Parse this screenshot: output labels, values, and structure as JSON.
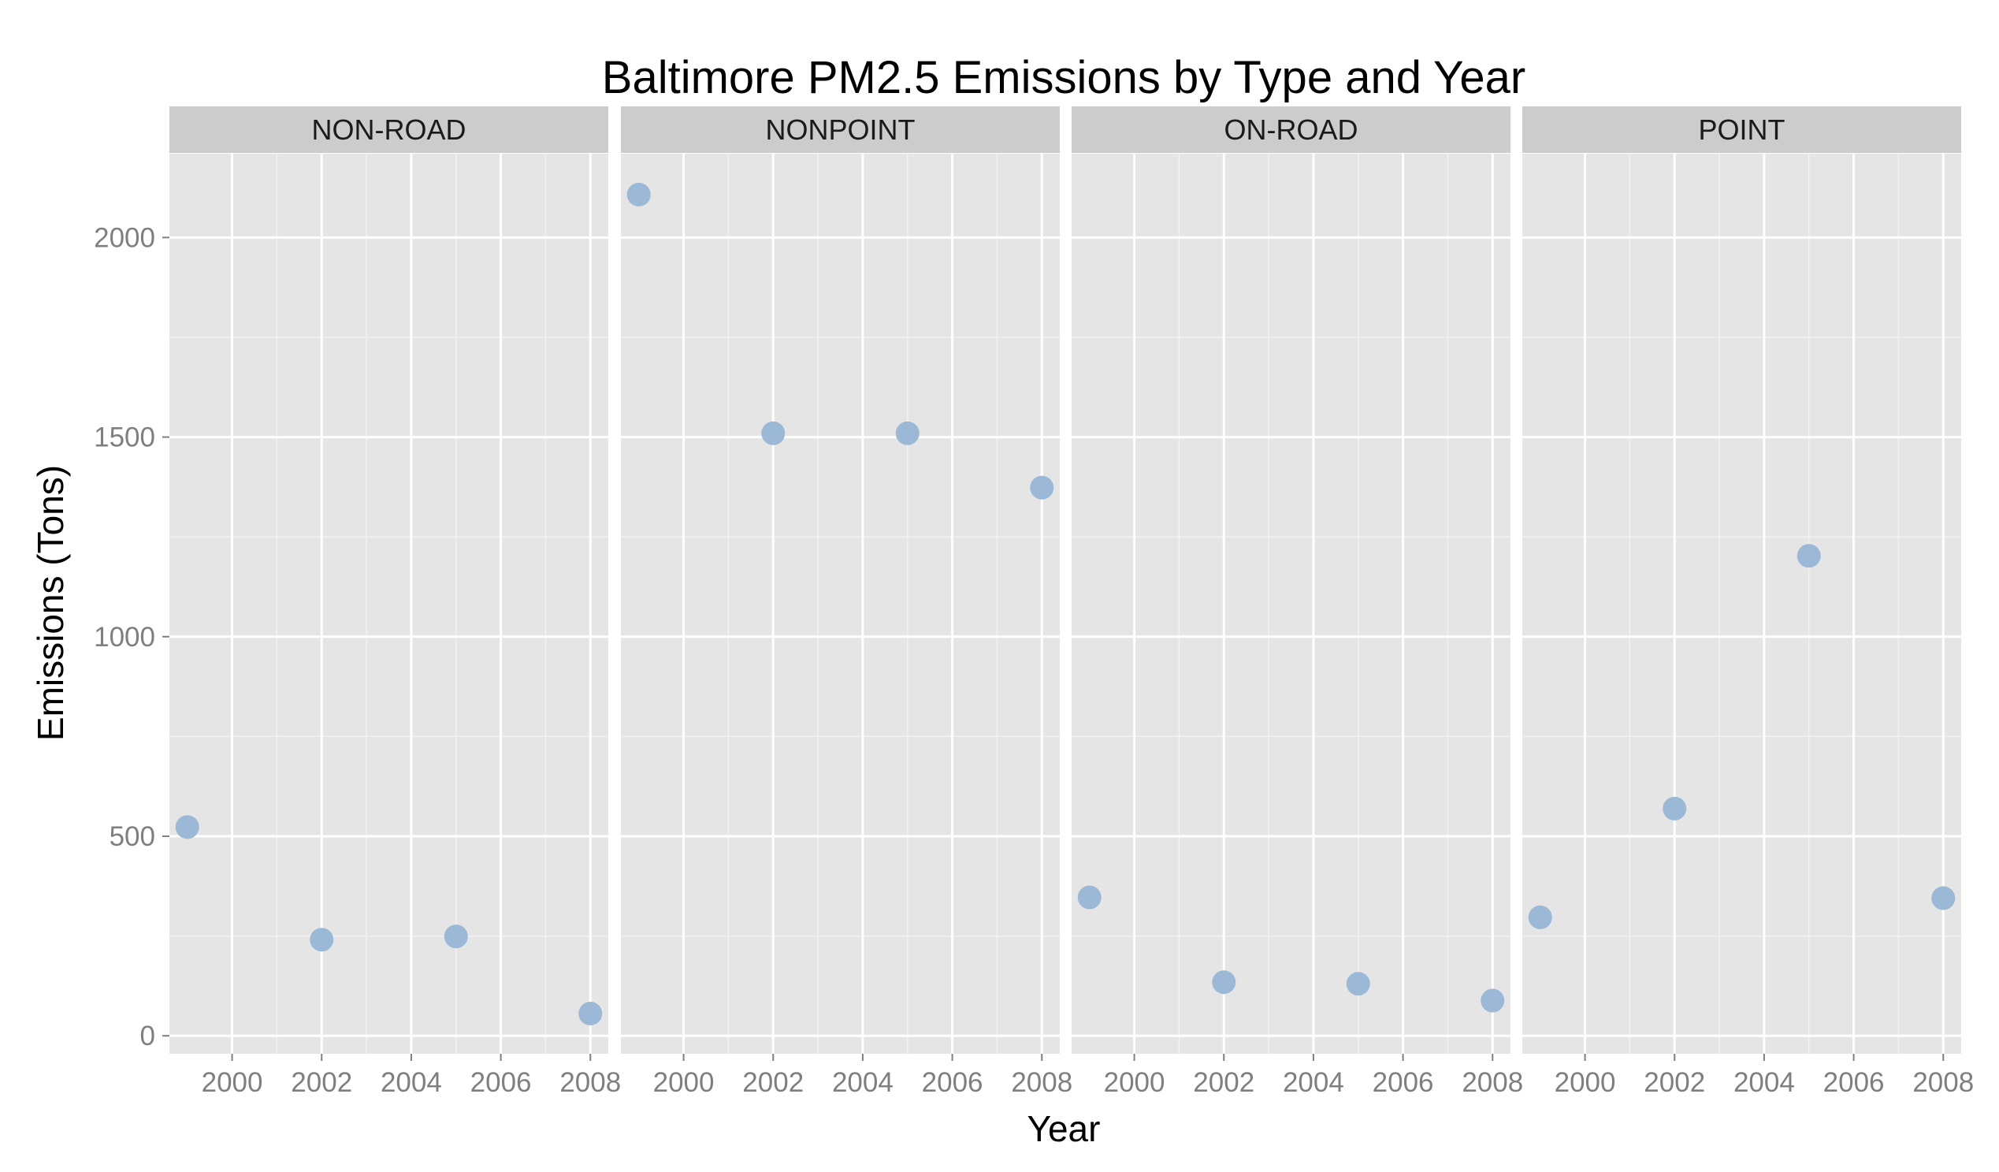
{
  "chart_data": {
    "type": "scatter",
    "title": "Baltimore PM2.5 Emissions by Type and Year",
    "xlabel": "Year",
    "ylabel": "Emissions (Tons)",
    "xlim": [
      1998.6,
      2008.4
    ],
    "ylim": [
      -45,
      2210
    ],
    "xticks": [
      2000,
      2002,
      2004,
      2006,
      2008
    ],
    "xtick_labels": [
      "2000",
      "2002",
      "2004",
      "2006",
      "2008"
    ],
    "yticks": [
      0,
      500,
      1000,
      1500,
      2000
    ],
    "ytick_labels": [
      "0",
      "500",
      "1000",
      "1500",
      "2000"
    ],
    "grid": true,
    "point_color": "#9bb8d6",
    "panel_background": "#e5e5e5",
    "strip_background": "#cccccc",
    "x": [
      1999,
      2002,
      2005,
      2008
    ],
    "facets": [
      {
        "name": "NON-ROAD",
        "values": [
          522.9,
          240.8,
          248.9,
          55.8
        ]
      },
      {
        "name": "NONPOINT",
        "values": [
          2107.6,
          1509.5,
          1509.5,
          1373.2
        ]
      },
      {
        "name": "ON-ROAD",
        "values": [
          346.8,
          134.3,
          130.4,
          88.3
        ]
      },
      {
        "name": "POINT",
        "values": [
          296.8,
          569.3,
          1202.5,
          344.98
        ]
      }
    ]
  }
}
